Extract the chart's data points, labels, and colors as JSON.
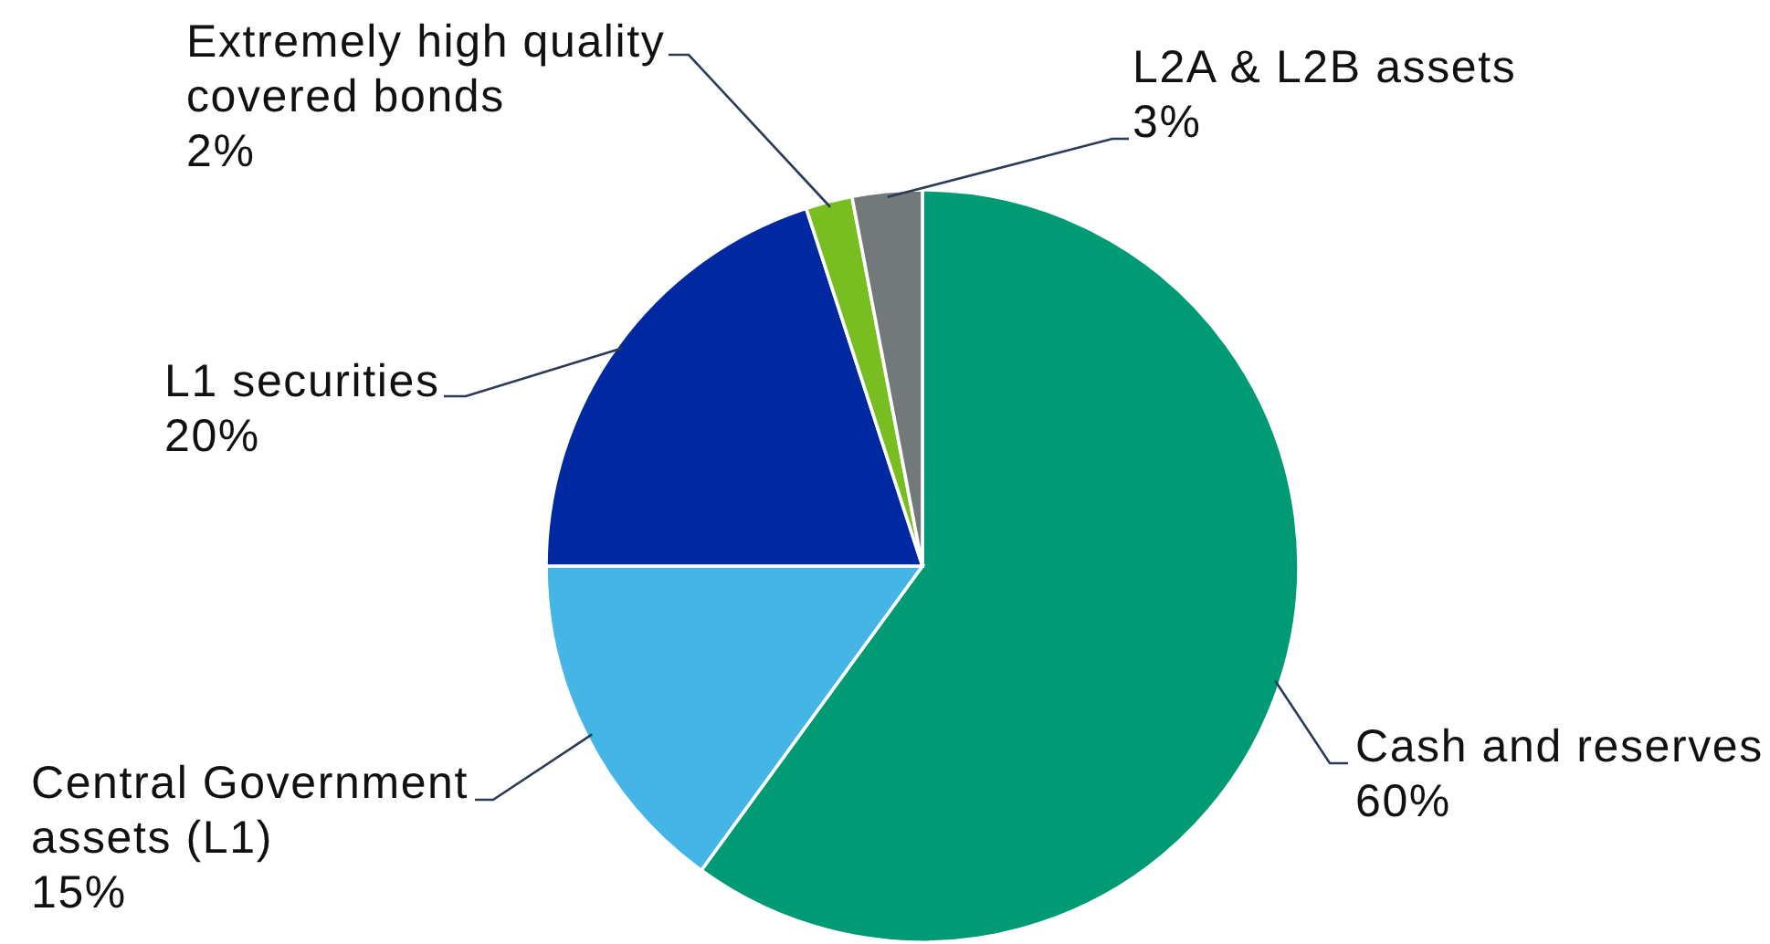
{
  "chart_data": {
    "type": "pie",
    "categories": [
      "Cash and reserves",
      "Central Government assets (L1)",
      "L1 securities",
      "Extremely high quality covered bonds",
      "L2A & L2B assets"
    ],
    "values": [
      60,
      15,
      20,
      2,
      3
    ],
    "colors": [
      "#009a74",
      "#45b5e6",
      "#0028a0",
      "#78be20",
      "#73787b"
    ],
    "value_labels": [
      "60%",
      "15%",
      "20%",
      "2%",
      "3%"
    ]
  }
}
